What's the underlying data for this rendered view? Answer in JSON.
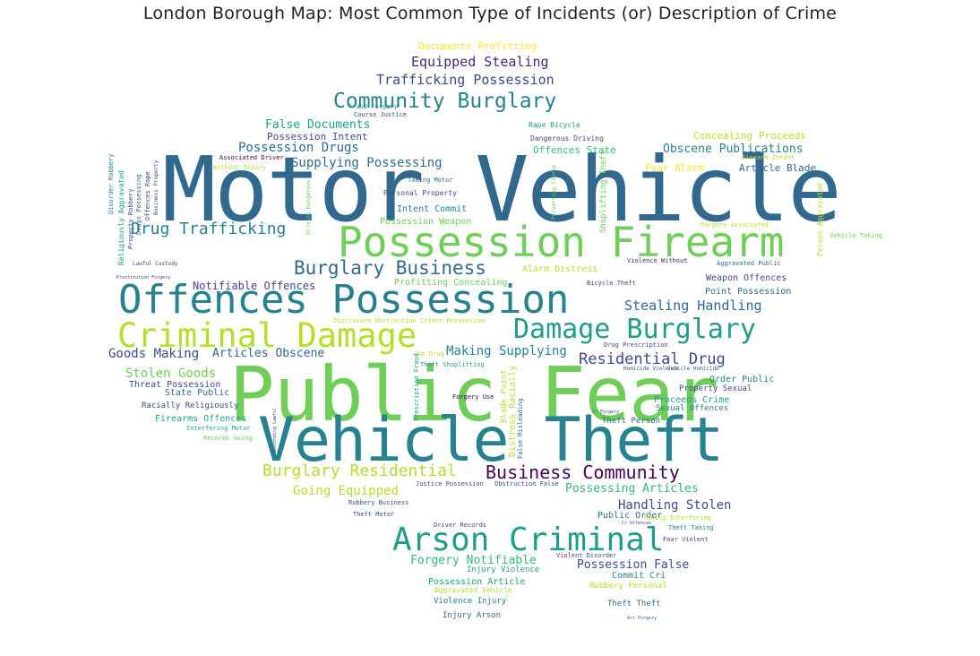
{
  "title": "London Borough Map: Most Common Type of Incidents (or) Description of Crime",
  "colors": {
    "c1": "#fde725",
    "c2": "#b5de2b",
    "c3": "#6ece58",
    "c4": "#35b779",
    "c5": "#1f9e89",
    "c6": "#26828e",
    "c7": "#31688e",
    "c8": "#3e4989",
    "c9": "#482878",
    "c10": "#440154"
  },
  "words": [
    {
      "text": "Motor Vehicle",
      "color": "#31688e"
    },
    {
      "text": "Public Fear",
      "color": "#6ece58"
    },
    {
      "text": "Vehicle Theft",
      "color": "#26828e"
    },
    {
      "text": "Offences Possession",
      "color": "#26828e"
    },
    {
      "text": "Possession Firearm",
      "color": "#6ece58"
    },
    {
      "text": "Criminal Damage",
      "color": "#b5de2b"
    },
    {
      "text": "Arson Criminal",
      "color": "#1f9e89"
    },
    {
      "text": "Damage Burglary",
      "color": "#1f9e89"
    },
    {
      "text": "Community Burglary",
      "color": "#26828e"
    },
    {
      "text": "Burglary Business",
      "color": "#31688e"
    },
    {
      "text": "Business Community",
      "color": "#440154"
    },
    {
      "text": "Burglary Residential",
      "color": "#b5de2b"
    },
    {
      "text": "Drug Trafficking",
      "color": "#26828e"
    },
    {
      "text": "Residential Drug",
      "color": "#3e4989"
    },
    {
      "text": "Stealing Handling",
      "color": "#31688e"
    },
    {
      "text": "Equipped Stealing",
      "color": "#482878"
    },
    {
      "text": "Trafficking Possession",
      "color": "#3e4989"
    },
    {
      "text": "Possession Drugs",
      "color": "#31688e"
    },
    {
      "text": "Supplying Possessing",
      "color": "#31688e"
    },
    {
      "text": "Making Supplying",
      "color": "#26828e"
    },
    {
      "text": "Goods Making",
      "color": "#3e4989"
    },
    {
      "text": "Articles Obscene",
      "color": "#31688e"
    },
    {
      "text": "Stolen Goods",
      "color": "#6ece58"
    },
    {
      "text": "Going Equipped",
      "color": "#b5de2b"
    },
    {
      "text": "Possessing Articles",
      "color": "#35b779"
    },
    {
      "text": "Handling Stolen",
      "color": "#3e4989"
    },
    {
      "text": "Forgery Notifiable",
      "color": "#35b779"
    },
    {
      "text": "Possession False",
      "color": "#3e4989"
    },
    {
      "text": "Obscene Publications",
      "color": "#26828e"
    },
    {
      "text": "False Documents",
      "color": "#1f9e89"
    },
    {
      "text": "Notifiable Offences",
      "color": "#3e4989"
    },
    {
      "text": "Concealing Proceeds",
      "color": "#b5de2b"
    },
    {
      "text": "Documents Profitting",
      "color": "#fde725"
    },
    {
      "text": "Possession Intent",
      "color": "#3e4989"
    },
    {
      "text": "Article Blade",
      "color": "#31688e"
    },
    {
      "text": "Offences State",
      "color": "#35b779"
    },
    {
      "text": "Fear Alarm",
      "color": "#fde725"
    },
    {
      "text": "Weapon Offences",
      "color": "#3e4989"
    },
    {
      "text": "Point Possession",
      "color": "#31688e"
    },
    {
      "text": "Profitting Concealing",
      "color": "#6ece58"
    },
    {
      "text": "Alarm Distress",
      "color": "#b5de2b"
    },
    {
      "text": "Threat Possession",
      "color": "#3e4989"
    },
    {
      "text": "State Public",
      "color": "#31688e"
    },
    {
      "text": "Racially Religiously",
      "color": "#3e4989"
    },
    {
      "text": "Firearms Offences",
      "color": "#1f9e89"
    },
    {
      "text": "Order Public",
      "color": "#26828e"
    },
    {
      "text": "Property Sexual",
      "color": "#3e4989"
    },
    {
      "text": "Proceeds Crime",
      "color": "#1f9e89"
    },
    {
      "text": "Sexual Offences",
      "color": "#26828e"
    },
    {
      "text": "Theft Person",
      "color": "#31688e"
    },
    {
      "text": "Public Order",
      "color": "#31688e"
    },
    {
      "text": "Commit Cri",
      "color": "#26828e"
    },
    {
      "text": "Robbery Personal",
      "color": "#b5de2b"
    },
    {
      "text": "Possession Article",
      "color": "#1f9e89"
    },
    {
      "text": "Injury Violence",
      "color": "#1f9e89"
    },
    {
      "text": "Aggravated Vehicle",
      "color": "#b5de2b"
    },
    {
      "text": "Violence Injury",
      "color": "#26828e"
    },
    {
      "text": "Injury Arson",
      "color": "#31688e"
    },
    {
      "text": "Theft Theft",
      "color": "#31688e"
    },
    {
      "text": "Intent Commit",
      "color": "#26828e"
    },
    {
      "text": "Possession Weapon",
      "color": "#6ece58"
    },
    {
      "text": "Personal Property",
      "color": "#3e4989"
    },
    {
      "text": "Taking Motor",
      "color": "#31688e"
    },
    {
      "text": "Rape Bicycle",
      "color": "#1f9e89"
    },
    {
      "text": "Dangerous Driving",
      "color": "#3e4989"
    },
    {
      "text": "Course Justice",
      "color": "#3e4989"
    },
    {
      "text": "Fraud Forgery",
      "color": "#1f9e89"
    },
    {
      "text": "Associated Driver",
      "color": "#440154"
    },
    {
      "text": "Without Injury",
      "color": "#b5de2b"
    },
    {
      "text": "Interfering Motor",
      "color": "#1f9e89"
    },
    {
      "text": "Records Going",
      "color": "#6ece58"
    },
    {
      "text": "Bicycle Theft",
      "color": "#3e4989"
    },
    {
      "text": "Violence Without",
      "color": "#482878"
    },
    {
      "text": "Aggravated Public",
      "color": "#31688e"
    },
    {
      "text": "Forgery Associated",
      "color": "#b5de2b"
    },
    {
      "text": "Vehicle Taking",
      "color": "#6ece58"
    },
    {
      "text": "Drug Prescription",
      "color": "#3e4989"
    },
    {
      "text": "Homicide Violence",
      "color": "#3e4989"
    },
    {
      "text": "Vehicle Homicide",
      "color": "#31688e"
    },
    {
      "text": "Theft Shoplifting",
      "color": "#1f9e89"
    },
    {
      "text": "Use Drug",
      "color": "#b5de2b"
    },
    {
      "text": "Forgery Use",
      "color": "#440154"
    },
    {
      "text": "Justice Possession",
      "color": "#3e4989"
    },
    {
      "text": "Obstruction False",
      "color": "#3e4989"
    },
    {
      "text": "Robbery Business",
      "color": "#3e4989"
    },
    {
      "text": "Theft Motor",
      "color": "#3e4989"
    },
    {
      "text": "Driver Records",
      "color": "#3e4989"
    },
    {
      "text": "Violent Disorder",
      "color": "#3e4989"
    },
    {
      "text": "Taking Interfering",
      "color": "#b5de2b"
    },
    {
      "text": "Theft Taking",
      "color": "#26828e"
    },
    {
      "text": "Fear Violent",
      "color": "#3e4989"
    },
    {
      "text": "Lawful Custody",
      "color": "#3e4989"
    },
    {
      "text": "Disclosure Obstruction Intent Possession",
      "color": "#b5de2b"
    },
    {
      "text": "Firearm Intent",
      "color": "#b5de2b"
    },
    {
      "text": "Art Forgery",
      "color": "#31688e"
    },
    {
      "text": "Prostitution Forgery",
      "color": "#3e4989"
    },
    {
      "text": "Blade Point",
      "color": "#b5de2b"
    },
    {
      "text": "Distress Racially",
      "color": "#b5de2b"
    },
    {
      "text": "Shoplifting Theft",
      "color": "#6ece58"
    },
    {
      "text": "Person Aggravated",
      "color": "#b5de2b"
    },
    {
      "text": "Prescription Fraud",
      "color": "#1f9e89"
    },
    {
      "text": "False Misleading",
      "color": "#31688e"
    },
    {
      "text": "Religiously Aggravated",
      "color": "#1f9e89"
    },
    {
      "text": "Property Robbery",
      "color": "#3e4989"
    },
    {
      "text": "Drugs Possessing",
      "color": "#31688e"
    },
    {
      "text": "Offences Rape",
      "color": "#3e4989"
    },
    {
      "text": "Disorder Robbery",
      "color": "#26828e"
    },
    {
      "text": "Business Property",
      "color": "#3e4989"
    },
    {
      "text": "Driving Dangerous",
      "color": "#6ece58"
    },
    {
      "text": "Perverting Course",
      "color": "#6ece58"
    },
    {
      "text": "Absconding Lawful",
      "color": "#3e4989"
    },
    {
      "text": "Cr Forgery",
      "color": "#3e4989"
    },
    {
      "text": "Cr Offences",
      "color": "#3e4989"
    }
  ]
}
